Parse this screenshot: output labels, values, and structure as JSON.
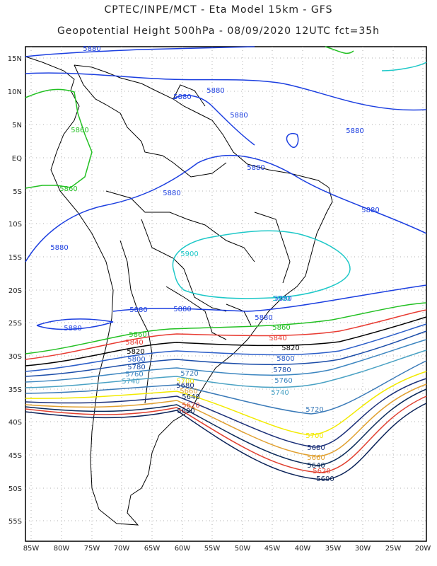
{
  "header": {
    "line1": "CPTEC/INPE/MCT  -  Eta Model 15km - GFS",
    "line2": "Geopotential Height 500hPa - 08/09/2020 12UTC fct=35h"
  },
  "axes": {
    "lat_labels": [
      "15N",
      "10N",
      "5N",
      "EQ",
      "5S",
      "10S",
      "15S",
      "20S",
      "25S",
      "30S",
      "35S",
      "40S",
      "45S",
      "50S",
      "55S"
    ],
    "lon_labels": [
      "85W",
      "80W",
      "75W",
      "70W",
      "65W",
      "60W",
      "55W",
      "50W",
      "45W",
      "40W",
      "35W",
      "30W",
      "25W",
      "20W"
    ]
  },
  "contours": [
    {
      "level": "5900",
      "color": "#1ec8c8"
    },
    {
      "level": "5880",
      "color": "#1c3fe0"
    },
    {
      "level": "5860",
      "color": "#22c022"
    },
    {
      "level": "5840",
      "color": "#e83b32"
    },
    {
      "level": "5820",
      "color": "#000000"
    },
    {
      "level": "5800",
      "color": "#2a5dc8"
    },
    {
      "level": "5780",
      "color": "#1a4ca8"
    },
    {
      "level": "5760",
      "color": "#3d86c0"
    },
    {
      "level": "5740",
      "color": "#4aa2c4"
    },
    {
      "level": "5720",
      "color": "#3a7ab8"
    },
    {
      "level": "5700",
      "color": "#f2ea00"
    },
    {
      "level": "5680",
      "color": "#1a2f78"
    },
    {
      "level": "5660",
      "color": "#e0a030"
    },
    {
      "level": "5640",
      "color": "#0a2a5a"
    },
    {
      "level": "5620",
      "color": "#e04030"
    },
    {
      "level": "5600",
      "color": "#0a2258"
    }
  ],
  "labels": {
    "l5880a": "5880",
    "l5880b": "5880",
    "l5880c": "5880",
    "l5880d": "5880",
    "l5880e": "5880",
    "l5880f": "5880",
    "l5880g": "5880",
    "l5880h": "5880",
    "l5880i": "5880",
    "l5880j": "5880",
    "l5880k": "5880",
    "l5880l": "5880",
    "l5880m": "5880",
    "l5880n": "5880",
    "l5860a": "5860",
    "l5860b": "5860",
    "l5900a": "5900",
    "l5900b": "5900",
    "l5860c": "5860",
    "l5860d": "5860",
    "l5840a": "5840",
    "l5840b": "5840",
    "l5820a": "5820",
    "l5820b": "5820",
    "l5800a": "5800",
    "l5800b": "5800",
    "l5780a": "5780",
    "l5780b": "5780",
    "l5760a": "5760",
    "l5760b": "5760",
    "l5740a": "5740",
    "l5740b": "5740",
    "l5720a": "5720",
    "l5720b": "5720",
    "l5700a": "5700",
    "l5700b": "5700",
    "l5680a": "5680",
    "l5680b": "5680",
    "l5660a": "5660",
    "l5660b": "5660",
    "l5640a": "5640",
    "l5640b": "5640",
    "l5620a": "5620",
    "l5620b": "5620",
    "l5600a": "5600",
    "l5600b": "5600"
  }
}
